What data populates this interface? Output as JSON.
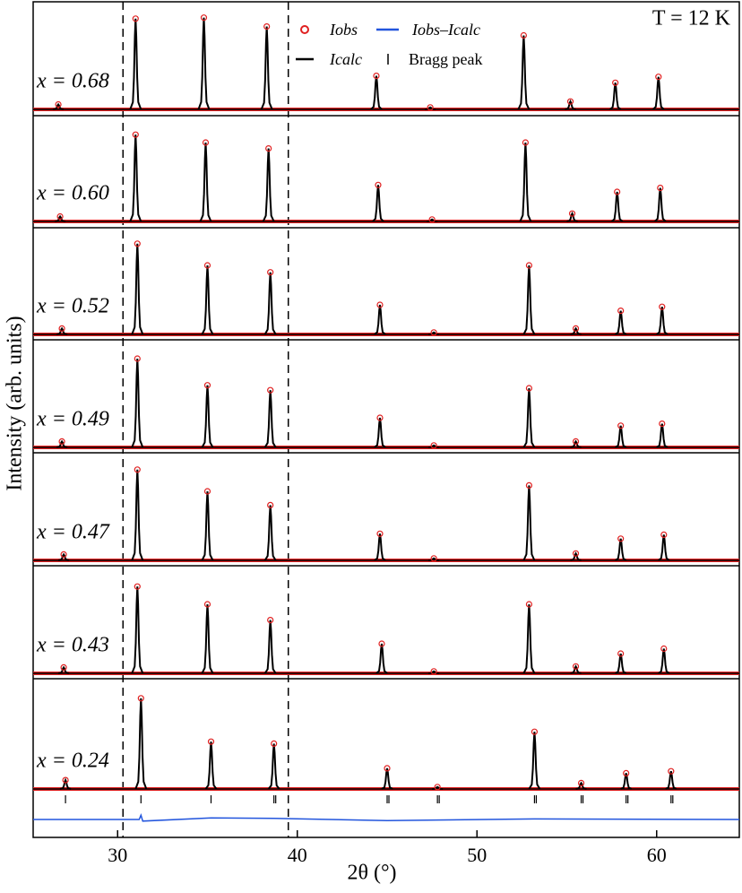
{
  "chart_data": {
    "type": "xrd",
    "xlabel": "2θ (°)",
    "ylabel": "Intensity (arb. units)",
    "annotation": "T = 12 K",
    "xlim": [
      25.3,
      64.6
    ],
    "xticks": [
      30,
      40,
      50,
      60
    ],
    "ylim": [
      0,
      100
    ],
    "vlines": [
      30.3,
      39.5
    ],
    "observed": {
      "name": "Iobs",
      "color": "#e02020"
    },
    "calculated": {
      "name": "Icalc",
      "color": "#000000"
    },
    "difference": {
      "name": "Iobs–Icalc",
      "color": "#2255dd",
      "x": [
        25.3,
        31.2,
        31.3,
        31.4,
        35.2,
        38.7,
        45.0,
        53.2,
        64.6
      ],
      "values": [
        0,
        0,
        8,
        -3,
        3,
        2,
        -2,
        1,
        0
      ]
    },
    "bragg": {
      "name": "Bragg peak",
      "color": "#000000",
      "x": [
        27.1,
        31.3,
        35.2,
        38.7,
        38.8,
        45.0,
        45.1,
        47.8,
        47.9,
        53.2,
        53.3,
        55.8,
        55.9,
        58.3,
        58.4,
        60.8,
        60.9
      ]
    },
    "series": [
      {
        "name": "x = 0.68",
        "x": [
          26.7,
          31.0,
          34.8,
          38.3,
          44.4,
          47.4,
          52.6,
          55.2,
          57.7,
          60.1
        ],
        "values": [
          5,
          92,
          93,
          84,
          34,
          2,
          75,
          8,
          27,
          33
        ]
      },
      {
        "name": "x = 0.60",
        "x": [
          26.8,
          31.0,
          34.9,
          38.4,
          44.5,
          47.5,
          52.7,
          55.3,
          57.8,
          60.2
        ],
        "values": [
          5,
          88,
          80,
          74,
          37,
          2,
          80,
          8,
          30,
          34
        ]
      },
      {
        "name": "x = 0.52",
        "x": [
          26.9,
          31.1,
          35.0,
          38.5,
          44.6,
          47.6,
          52.9,
          55.5,
          58.0,
          60.3
        ],
        "values": [
          6,
          92,
          70,
          63,
          30,
          2,
          70,
          6,
          24,
          28
        ]
      },
      {
        "name": "x = 0.49",
        "x": [
          26.9,
          31.1,
          35.0,
          38.5,
          44.6,
          47.6,
          52.9,
          55.5,
          58.0,
          60.3
        ],
        "values": [
          6,
          90,
          63,
          58,
          30,
          2,
          60,
          6,
          22,
          24
        ]
      },
      {
        "name": "x = 0.47",
        "x": [
          27.0,
          31.1,
          35.0,
          38.5,
          44.6,
          47.6,
          52.9,
          55.5,
          58.0,
          60.4
        ],
        "values": [
          6,
          92,
          70,
          56,
          27,
          2,
          76,
          7,
          22,
          26
        ]
      },
      {
        "name": "x = 0.43",
        "x": [
          27.0,
          31.1,
          35.0,
          38.5,
          44.7,
          47.6,
          52.9,
          55.5,
          58.0,
          60.4
        ],
        "values": [
          6,
          88,
          70,
          54,
          30,
          2,
          70,
          7,
          20,
          25
        ]
      },
      {
        "name": "x = 0.24",
        "x": [
          27.1,
          31.3,
          35.2,
          38.7,
          45.0,
          47.8,
          53.2,
          55.8,
          58.3,
          60.8
        ],
        "values": [
          9,
          92,
          48,
          46,
          21,
          2,
          58,
          6,
          16,
          18
        ]
      }
    ]
  }
}
